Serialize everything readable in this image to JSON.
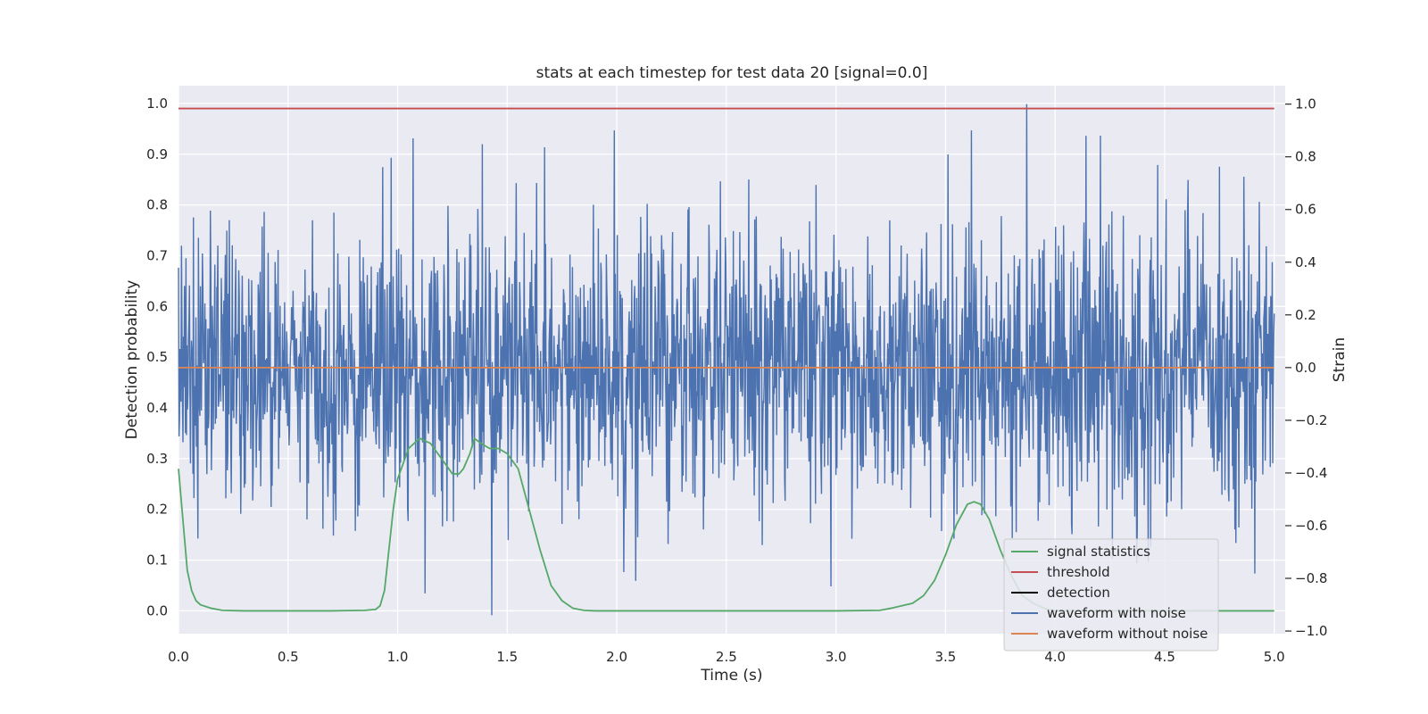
{
  "chart_data": {
    "type": "line",
    "title": "stats at each timestep for test data 20 [signal=0.0]",
    "xlabel": "Time (s)",
    "ylabel": "Detection probability",
    "ylabel_right": "Strain",
    "xlim": [
      0.0,
      5.05
    ],
    "ylim": [
      -0.045,
      1.035
    ],
    "ylim_right": [
      -1.01,
      1.07
    ],
    "xticks": [
      "0.0",
      "0.5",
      "1.0",
      "1.5",
      "2.0",
      "2.5",
      "3.0",
      "3.5",
      "4.0",
      "4.5",
      "5.0"
    ],
    "xtick_values": [
      0,
      0.5,
      1.0,
      1.5,
      2.0,
      2.5,
      3.0,
      3.5,
      4.0,
      4.5,
      5.0
    ],
    "yticks": [
      "0.0",
      "0.1",
      "0.2",
      "0.3",
      "0.4",
      "0.5",
      "0.6",
      "0.7",
      "0.8",
      "0.9",
      "1.0"
    ],
    "ytick_values": [
      0,
      0.1,
      0.2,
      0.3,
      0.4,
      0.5,
      0.6,
      0.7,
      0.8,
      0.9,
      1.0
    ],
    "yticks_right": [
      "−1.0",
      "−0.8",
      "−0.6",
      "−0.4",
      "−0.2",
      "0.0",
      "0.2",
      "0.4",
      "0.6",
      "0.8",
      "1.0"
    ],
    "ytick_values_right": [
      -1.0,
      -0.8,
      -0.6,
      -0.4,
      -0.2,
      0.0,
      0.2,
      0.4,
      0.6,
      0.8,
      1.0
    ],
    "grid": true,
    "legend_position": "lower-right",
    "series": [
      {
        "name": "signal statistics",
        "axis": "left",
        "color": "#55a868",
        "x": [
          0.0,
          0.02,
          0.04,
          0.06,
          0.08,
          0.1,
          0.15,
          0.2,
          0.3,
          0.5,
          0.7,
          0.85,
          0.9,
          0.92,
          0.94,
          0.96,
          0.98,
          1.0,
          1.05,
          1.1,
          1.15,
          1.2,
          1.25,
          1.28,
          1.3,
          1.33,
          1.35,
          1.38,
          1.42,
          1.46,
          1.5,
          1.55,
          1.6,
          1.65,
          1.7,
          1.75,
          1.8,
          1.85,
          1.9,
          2.0,
          2.5,
          3.0,
          3.2,
          3.25,
          3.3,
          3.35,
          3.4,
          3.45,
          3.5,
          3.55,
          3.6,
          3.63,
          3.66,
          3.7,
          3.75,
          3.8,
          3.85,
          3.9,
          3.95,
          4.0,
          4.2,
          4.5,
          4.8,
          5.0
        ],
        "y": [
          0.28,
          0.18,
          0.08,
          0.04,
          0.02,
          0.012,
          0.005,
          0.001,
          0.0,
          0.0,
          0.0,
          0.001,
          0.003,
          0.01,
          0.04,
          0.12,
          0.2,
          0.26,
          0.32,
          0.34,
          0.33,
          0.3,
          0.27,
          0.27,
          0.28,
          0.31,
          0.34,
          0.33,
          0.32,
          0.32,
          0.31,
          0.28,
          0.2,
          0.12,
          0.05,
          0.02,
          0.005,
          0.001,
          0.0,
          0.0,
          0.0,
          0.0,
          0.001,
          0.005,
          0.01,
          0.015,
          0.03,
          0.06,
          0.11,
          0.17,
          0.21,
          0.215,
          0.21,
          0.18,
          0.12,
          0.07,
          0.03,
          0.015,
          0.005,
          0.0,
          0.0,
          0.0,
          0.0,
          0.0
        ]
      },
      {
        "name": "threshold",
        "axis": "left",
        "color": "#c44e52",
        "x": [
          0.0,
          5.0
        ],
        "y": [
          0.99,
          0.99
        ]
      },
      {
        "name": "detection",
        "axis": "left",
        "color": "#000000",
        "x": [],
        "y": []
      },
      {
        "name": "waveform with noise",
        "axis": "right",
        "color": "#4c72b0",
        "type": "noise",
        "x_range": [
          0.0,
          5.0
        ],
        "y_range": [
          -0.95,
          1.0
        ],
        "note_spikes": [
          {
            "x": 1.07,
            "y": 0.87
          },
          {
            "x": 1.43,
            "y": -0.94
          },
          {
            "x": 3.87,
            "y": 1.0
          },
          {
            "x": 4.14,
            "y": 0.88
          }
        ]
      },
      {
        "name": "waveform without noise",
        "axis": "right",
        "color": "#dd8452",
        "x": [
          0.0,
          5.0
        ],
        "y": [
          0.0,
          0.0
        ]
      }
    ]
  }
}
